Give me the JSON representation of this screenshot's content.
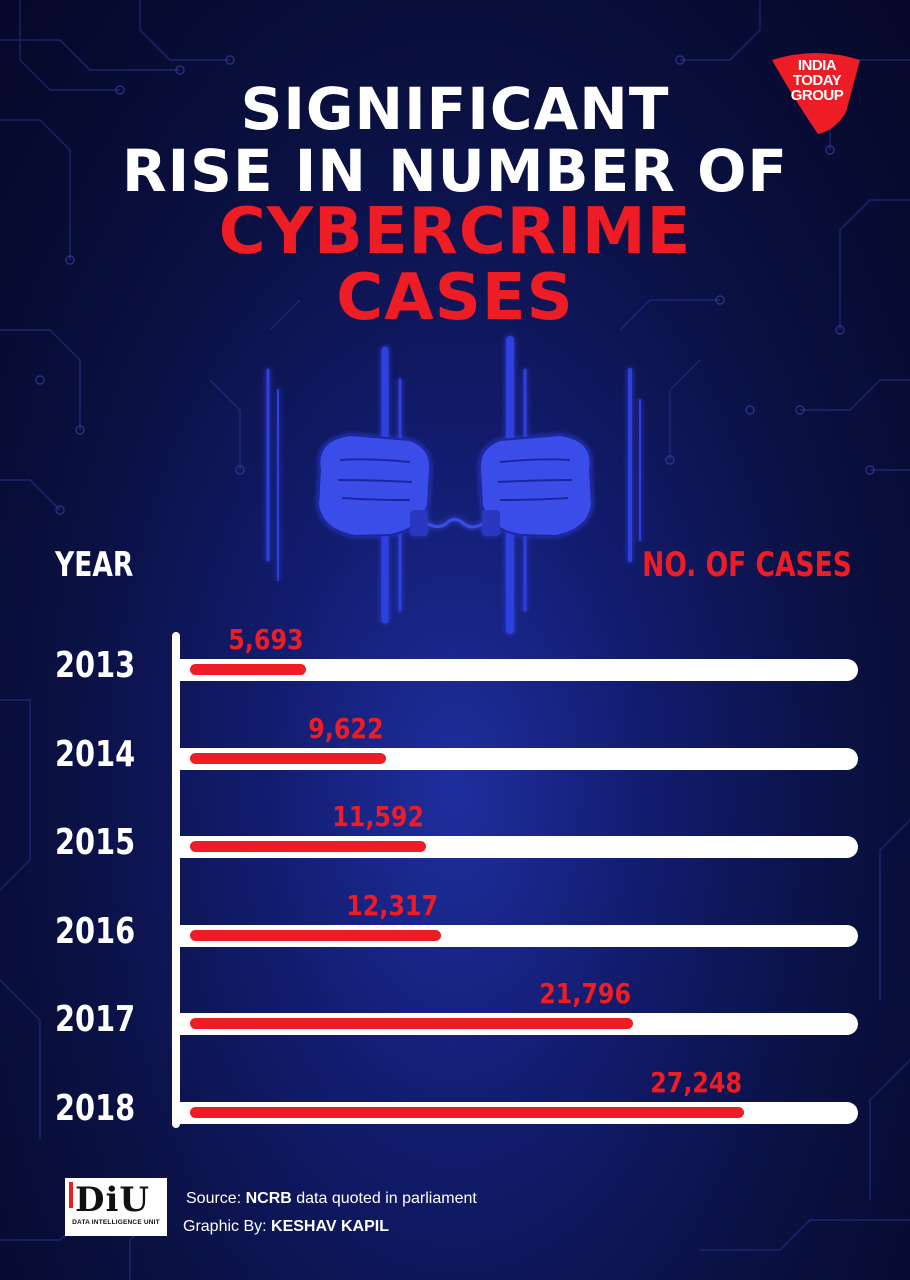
{
  "title": {
    "line1": "SIGNIFICANT",
    "line2": "RISE IN NUMBER OF",
    "line3": "CYBERCRIME",
    "line4": "CASES"
  },
  "logo": {
    "line1": "INDIA",
    "line2": "TODAY",
    "line3": "GROUP"
  },
  "colors": {
    "accent": "#ee1c24",
    "background": "#0a1040",
    "track": "#ffffff"
  },
  "chart_data": {
    "type": "bar",
    "orientation": "horizontal",
    "xlabel": "NO. OF CASES",
    "ylabel": "YEAR",
    "categories": [
      "2013",
      "2014",
      "2015",
      "2016",
      "2017",
      "2018"
    ],
    "values": [
      5693,
      9622,
      11592,
      12317,
      21796,
      27248
    ],
    "value_labels": [
      "5,693",
      "9,622",
      "11,592",
      "12,317",
      "21,796",
      "27,248"
    ],
    "xlim": [
      0,
      32000
    ]
  },
  "footer": {
    "diu_letters": "DiU",
    "diu_sub": "DATA INTELLIGENCE UNIT",
    "source_prefix": "Source: ",
    "source_bold": "NCRB",
    "source_rest": " data quoted in parliament",
    "credit_prefix": "Graphic By: ",
    "credit_bold": "KESHAV KAPIL"
  },
  "icons": [
    "india-today-logo-icon",
    "handcuffed-hands-icon",
    "circuit-pattern-icon",
    "diu-logo-icon"
  ]
}
